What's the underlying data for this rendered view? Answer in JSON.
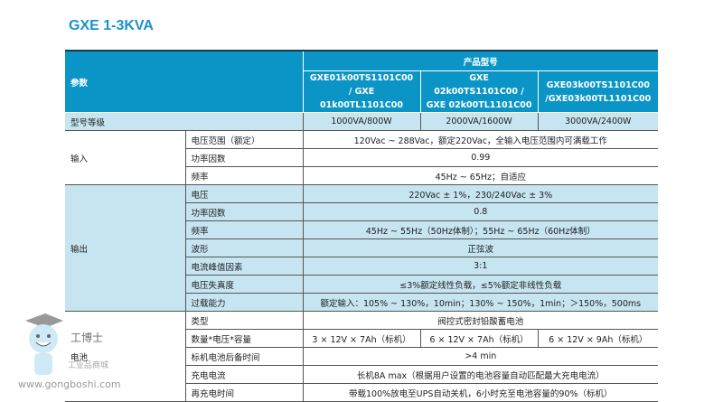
{
  "title": "GXE 1-3KVA",
  "header": {
    "param": "参数",
    "product_model": "产品型号",
    "models": [
      "GXE01k00TS1101C00 / GXE 01k00TL1101C00",
      "GXE 02k00TS1101C00 / GXE 02k00TL1101C00",
      "GXE03k00TS1101C00 /GXE03k00TL1101C00"
    ]
  },
  "rating": {
    "label": "型号等级",
    "values": [
      "1000VA/800W",
      "2000VA/1600W",
      "3000VA/2400W"
    ]
  },
  "input": {
    "label": "输入",
    "rows": [
      {
        "k": "电压范围（额定）",
        "v": "120Vac ~ 288Vac，额定220Vac，全输入电压范围内可满载工作"
      },
      {
        "k": "功率因数",
        "v": "0.99"
      },
      {
        "k": "频率",
        "v": "45Hz ~ 65Hz；自适应"
      }
    ]
  },
  "output": {
    "label": "输出",
    "rows": [
      {
        "k": "电压",
        "v": "220Vac ± 1%，230/240Vac ± 3%"
      },
      {
        "k": "功率因数",
        "v": "0.8"
      },
      {
        "k": "频率",
        "v": "45Hz ~ 55Hz（50Hz体制）；55Hz ~ 65Hz（60Hz体制）"
      },
      {
        "k": "波形",
        "v": "正弦波"
      },
      {
        "k": "电流峰值因素",
        "v": "3:1"
      },
      {
        "k": "电压失真度",
        "v": "≤3%额定线性负载，≤5%额定非线性负载"
      },
      {
        "k": "过载能力",
        "v": "额定输入：105% ~ 130%，10min；130% ~ 150%，1min；＞150%，500ms"
      }
    ]
  },
  "battery": {
    "label": "电池",
    "type_k": "类型",
    "type_v": "阀控式密封铅酸蓄电池",
    "qty_k": "数量*电压*容量",
    "qty_v": [
      "3 × 12V × 7Ah（标机）",
      "6 × 12V × 7Ah（标机）",
      "6 × 12V × 9Ah（标机）"
    ],
    "backup_k": "标机电池后备时间",
    "backup_v": ">4 min",
    "charge_k": "充电电流",
    "charge_v": "长机8A max（根据用户设置的电池容量自动匹配最大充电电流）",
    "recharge_k": "再充电时间",
    "recharge_v": "带载100%放电至UPS自动关机，6小时充至电池容量的90%（标机）"
  },
  "watermark": {
    "brand": "工博士",
    "sub": "工业品商城",
    "url": "www.gongboshi.com"
  },
  "colors": {
    "header": "#0a95c6",
    "light": "#c6e5f1",
    "title": "#1a93c9"
  }
}
